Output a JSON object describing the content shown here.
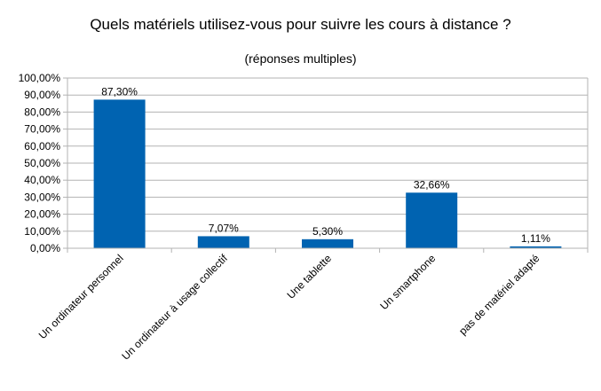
{
  "chart_data": {
    "type": "bar",
    "title": "Quels matériels utilisez-vous pour suivre les cours à distance ?",
    "subtitle": "(réponses multiples)",
    "categories": [
      "Un ordinateur personnel",
      "Un ordinateur à usage collectif",
      "Une tablette",
      "Un smartphone",
      "pas de matériel adapté"
    ],
    "values": [
      87.3,
      7.07,
      5.3,
      32.66,
      1.11
    ],
    "data_labels": [
      "87,30%",
      "7,07%",
      "5,30%",
      "32,66%",
      "1,11%"
    ],
    "ylim": [
      0,
      100
    ],
    "yticks": [
      0,
      10,
      20,
      30,
      40,
      50,
      60,
      70,
      80,
      90,
      100
    ],
    "ytick_labels": [
      "0,00%",
      "10,00%",
      "20,00%",
      "30,00%",
      "40,00%",
      "50,00%",
      "60,00%",
      "70,00%",
      "80,00%",
      "90,00%",
      "100,00%"
    ],
    "grid": true,
    "bar_color": "#0063b1",
    "grid_color": "#b3b3b3"
  }
}
